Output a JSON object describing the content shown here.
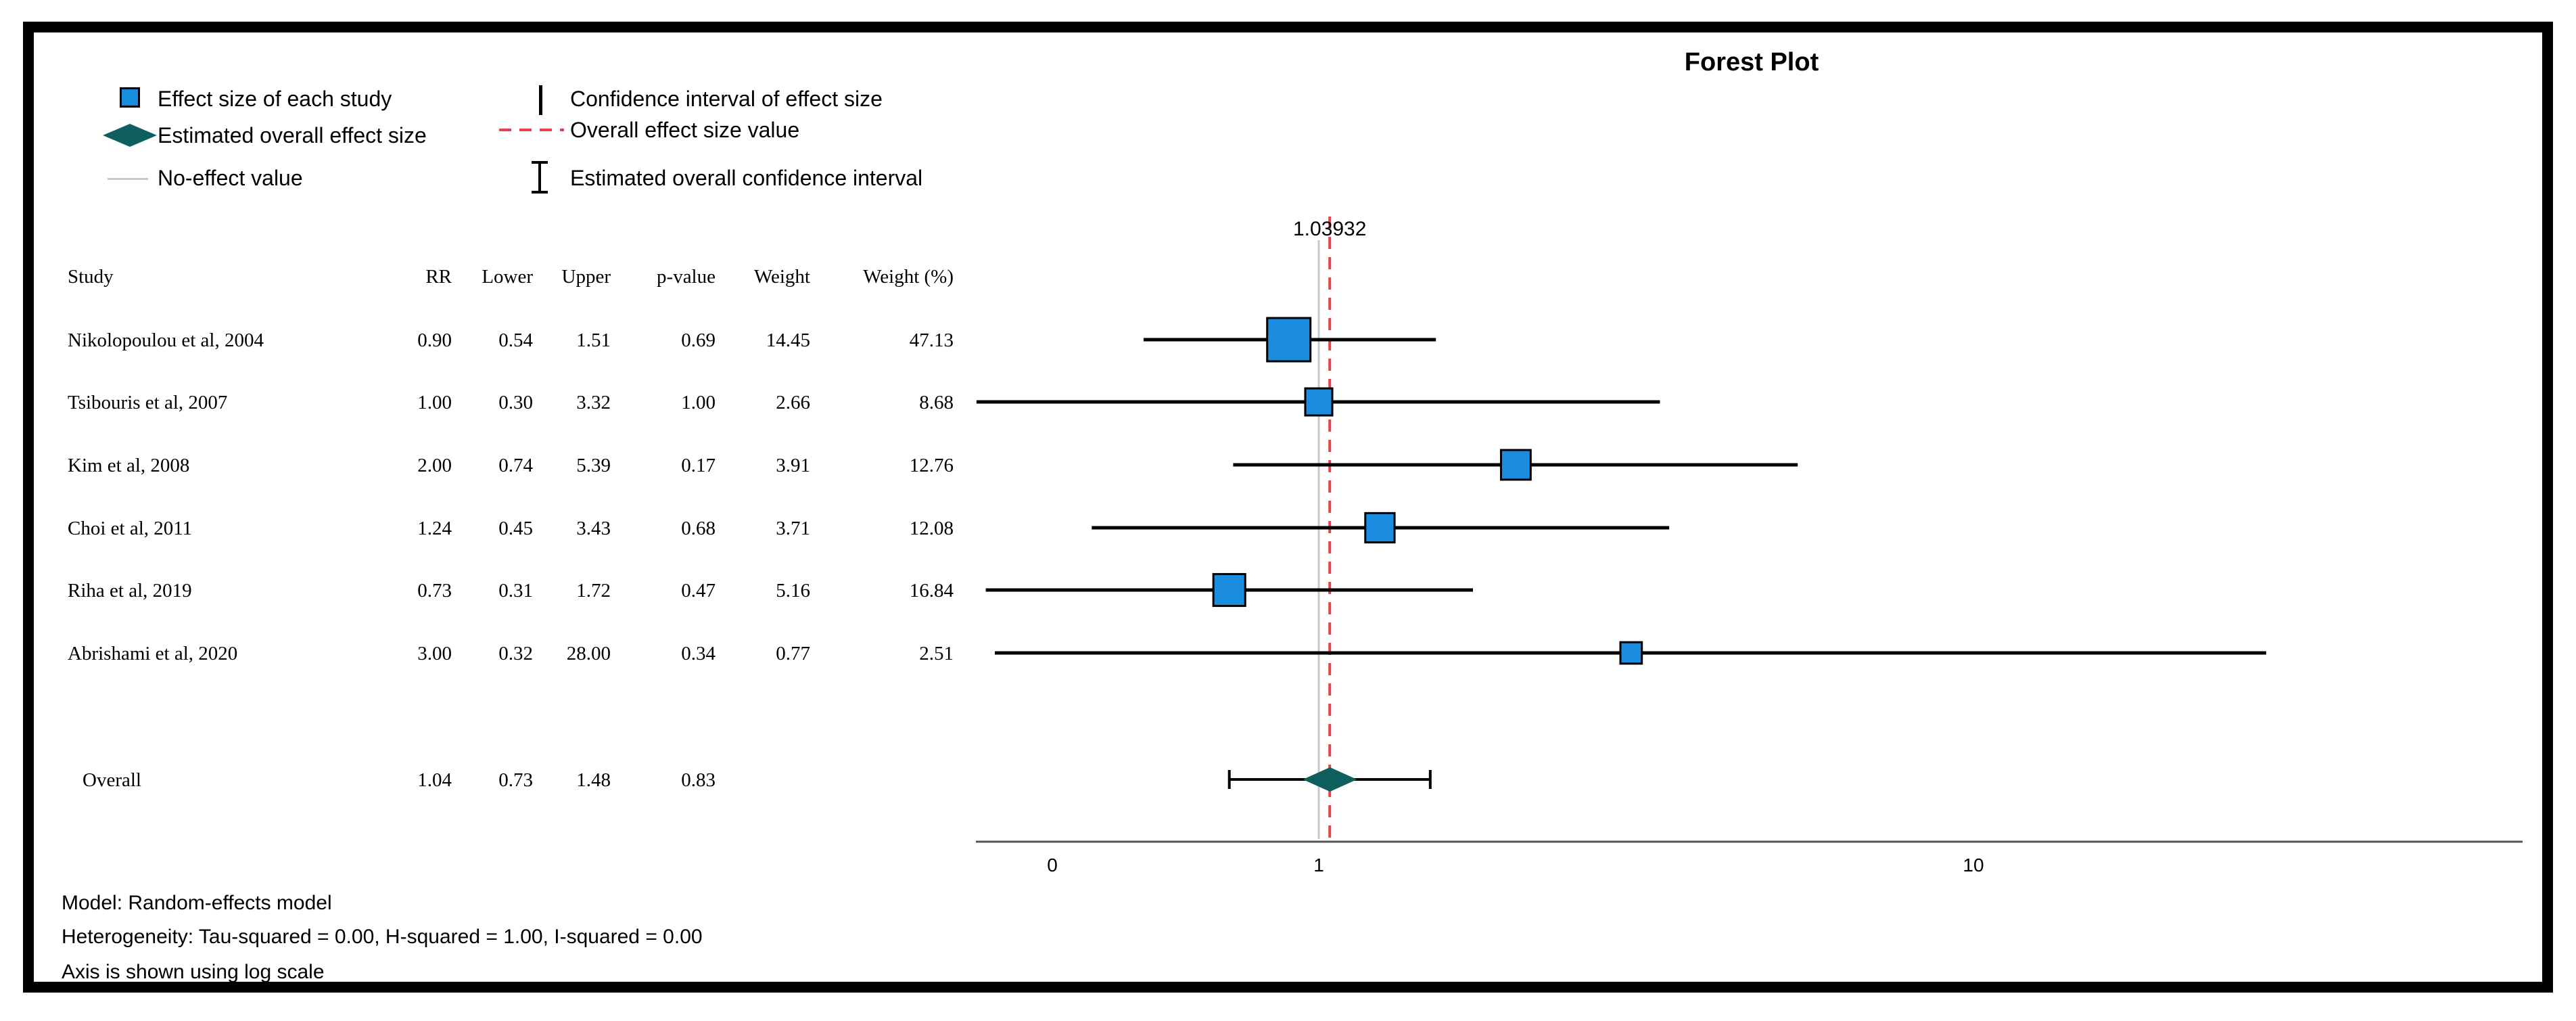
{
  "legend": {
    "effect_size": "Effect size of each study",
    "overall_effect": "Estimated overall effect size",
    "no_effect": "No-effect value",
    "ci_effect": "Confidence interval of effect size",
    "overall_value": "Overall effect size value",
    "overall_ci": "Estimated overall confidence interval"
  },
  "table": {
    "headers": [
      "Study",
      "RR",
      "Lower",
      "Upper",
      "p-value",
      "Weight",
      "Weight (%)"
    ],
    "rows": [
      [
        "Nikolopoulou et al, 2004",
        "0.90",
        "0.54",
        "1.51",
        "0.69",
        "14.45",
        "47.13"
      ],
      [
        "Tsibouris et al, 2007",
        "1.00",
        "0.30",
        "3.32",
        "1.00",
        "2.66",
        "8.68"
      ],
      [
        "Kim et al, 2008",
        "2.00",
        "0.74",
        "5.39",
        "0.17",
        "3.91",
        "12.76"
      ],
      [
        "Choi et al, 2011",
        "1.24",
        "0.45",
        "3.43",
        "0.68",
        "3.71",
        "12.08"
      ],
      [
        "Riha et al, 2019",
        "0.73",
        "0.31",
        "1.72",
        "0.47",
        "5.16",
        "16.84"
      ],
      [
        "Abrishami et al, 2020",
        "3.00",
        "0.32",
        "28.00",
        "0.34",
        "0.77",
        "2.51"
      ]
    ],
    "overall": [
      "Overall",
      "1.04",
      "0.73",
      "1.48",
      "0.83",
      "",
      ""
    ]
  },
  "footer": {
    "model": "Model: Random-effects model",
    "heterogeneity": "Heterogeneity: Tau-squared = 0.00, H-squared = 1.00, I-squared = 0.00",
    "axis_note": "Axis is shown using log scale"
  },
  "colors": {
    "square": "#1a8de0",
    "diamond": "#0f5e5e",
    "overall_line": "#e8424a",
    "no_effect_line": "#c8c8c8"
  },
  "chart_data": {
    "type": "forest",
    "title": "Forest Plot",
    "scale": "log",
    "overall_label": "1.03932",
    "overall_value": 1.03932,
    "no_effect_value": 1,
    "x_ticks": [
      {
        "value": 0.1,
        "label": "0"
      },
      {
        "value": 1,
        "label": "1"
      },
      {
        "value": 10,
        "label": "10"
      }
    ],
    "studies": [
      {
        "name": "Nikolopoulou et al, 2004",
        "rr": 0.9,
        "lower": 0.54,
        "upper": 1.51,
        "weight_pct": 47.13
      },
      {
        "name": "Tsibouris et al, 2007",
        "rr": 1.0,
        "lower": 0.3,
        "upper": 3.32,
        "weight_pct": 8.68
      },
      {
        "name": "Kim et al, 2008",
        "rr": 2.0,
        "lower": 0.74,
        "upper": 5.39,
        "weight_pct": 12.76
      },
      {
        "name": "Choi et al, 2011",
        "rr": 1.24,
        "lower": 0.45,
        "upper": 3.43,
        "weight_pct": 12.08
      },
      {
        "name": "Riha et al, 2019",
        "rr": 0.73,
        "lower": 0.31,
        "upper": 1.72,
        "weight_pct": 16.84
      },
      {
        "name": "Abrishami et al, 2020",
        "rr": 3.0,
        "lower": 0.32,
        "upper": 28.0,
        "weight_pct": 2.51
      }
    ],
    "overall": {
      "rr": 1.04,
      "lower": 0.73,
      "upper": 1.48
    }
  }
}
